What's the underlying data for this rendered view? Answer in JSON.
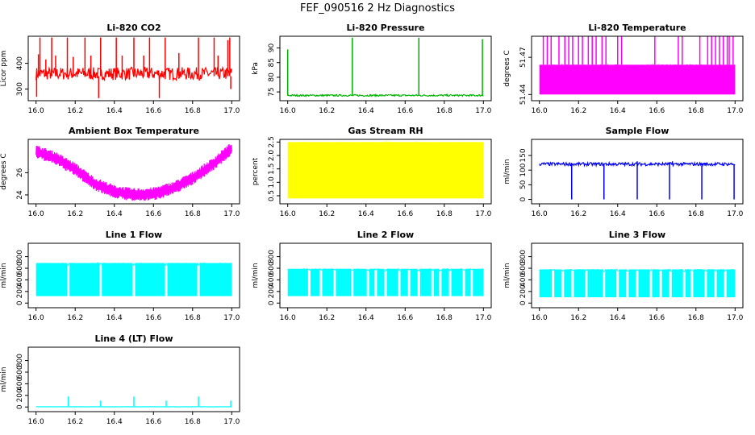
{
  "page_title": "FEF_090516  2 Hz Diagnostics",
  "chart_data": [
    {
      "id": "co2",
      "type": "line",
      "title": "Li-820 CO2",
      "ylabel": "Licor ppm",
      "color": "#ff0000",
      "xlim": [
        15.96,
        17.04
      ],
      "x_ticks": [
        "16.0",
        "16.2",
        "16.4",
        "16.6",
        "16.8",
        "17.0"
      ],
      "ylim": [
        255,
        505
      ],
      "y_ticks": [
        "300",
        "400"
      ],
      "series": [
        {
          "name": "CO2",
          "base": 350,
          "noise": [
            -15,
            35
          ],
          "spikes": [
            [
              16.003,
              270
            ],
            [
              16.012,
              435
            ],
            [
              16.02,
              500
            ],
            [
              16.05,
              415
            ],
            [
              16.08,
              500
            ],
            [
              16.1,
              430
            ],
            [
              16.16,
              500
            ],
            [
              16.19,
              425
            ],
            [
              16.25,
              500
            ],
            [
              16.28,
              430
            ],
            [
              16.32,
              265
            ],
            [
              16.33,
              500
            ],
            [
              16.41,
              500
            ],
            [
              16.44,
              430
            ],
            [
              16.5,
              500
            ],
            [
              16.55,
              430
            ],
            [
              16.58,
              500
            ],
            [
              16.63,
              265
            ],
            [
              16.66,
              500
            ],
            [
              16.73,
              440
            ],
            [
              16.83,
              500
            ],
            [
              16.91,
              500
            ],
            [
              16.93,
              430
            ],
            [
              16.98,
              490
            ],
            [
              16.99,
              500
            ],
            [
              16.995,
              300
            ]
          ]
        }
      ]
    },
    {
      "id": "pressure",
      "type": "line",
      "title": "Li-820 Pressure",
      "ylabel": "kPa",
      "color": "#00b000",
      "xlim": [
        15.96,
        17.04
      ],
      "x_ticks": [
        "16.0",
        "16.2",
        "16.4",
        "16.6",
        "16.8",
        "17.0"
      ],
      "ylim": [
        72,
        94
      ],
      "y_ticks": [
        "75",
        "80",
        "85",
        "90"
      ],
      "series": [
        {
          "name": "Pressure",
          "base": 73.8,
          "noise": [
            -0.3,
            0.3
          ],
          "spikes": [
            [
              16.0,
              89.5
            ],
            [
              16.33,
              93.5
            ],
            [
              16.67,
              93.5
            ],
            [
              16.995,
              93
            ]
          ]
        }
      ]
    },
    {
      "id": "temperature",
      "type": "line",
      "title": "Li-820 Temperature",
      "ylabel": "degrees C",
      "color": "#ff00ff",
      "xlim": [
        15.96,
        17.04
      ],
      "x_ticks": [
        "16.0",
        "16.2",
        "16.4",
        "16.6",
        "16.8",
        "17.0"
      ],
      "ylim": [
        51.435,
        51.487
      ],
      "y_ticks": [
        "51.44",
        "51.47"
      ],
      "series": [
        {
          "name": "Temperature",
          "band": [
            51.44,
            51.464
          ],
          "spikes": [
            [
              16.02,
              51.487
            ],
            [
              16.04,
              51.487
            ],
            [
              16.06,
              51.487
            ],
            [
              16.1,
              51.487
            ],
            [
              16.13,
              51.487
            ],
            [
              16.15,
              51.487
            ],
            [
              16.17,
              51.487
            ],
            [
              16.2,
              51.487
            ],
            [
              16.22,
              51.487
            ],
            [
              16.25,
              51.487
            ],
            [
              16.27,
              51.487
            ],
            [
              16.29,
              51.487
            ],
            [
              16.32,
              51.487
            ],
            [
              16.34,
              51.487
            ],
            [
              16.4,
              51.487
            ],
            [
              16.42,
              51.487
            ],
            [
              16.59,
              51.487
            ],
            [
              16.71,
              51.487
            ],
            [
              16.73,
              51.487
            ],
            [
              16.82,
              51.487
            ],
            [
              16.86,
              51.487
            ],
            [
              16.88,
              51.487
            ],
            [
              16.9,
              51.487
            ],
            [
              16.92,
              51.487
            ],
            [
              16.94,
              51.487
            ],
            [
              16.96,
              51.487
            ],
            [
              16.97,
              51.487
            ],
            [
              16.99,
              51.487
            ]
          ]
        }
      ]
    },
    {
      "id": "ambient",
      "type": "line",
      "title": "Ambient Box Temperature",
      "ylabel": "degrees C",
      "color": "#ff00ff",
      "xlim": [
        15.96,
        17.04
      ],
      "x_ticks": [
        "16.0",
        "16.2",
        "16.4",
        "16.6",
        "16.8",
        "17.0"
      ],
      "ylim": [
        23.2,
        29.0
      ],
      "y_ticks": [
        "24",
        "26"
      ],
      "series": [
        {
          "name": "Ambient",
          "curve": [
            [
              16.0,
              27.9
            ],
            [
              16.1,
              27.3
            ],
            [
              16.2,
              26.3
            ],
            [
              16.3,
              25.0
            ],
            [
              16.4,
              24.3
            ],
            [
              16.5,
              24.0
            ],
            [
              16.6,
              24.1
            ],
            [
              16.7,
              24.6
            ],
            [
              16.8,
              25.5
            ],
            [
              16.9,
              26.7
            ],
            [
              17.0,
              28.2
            ]
          ],
          "noise": [
            -0.6,
            0.6
          ]
        }
      ]
    },
    {
      "id": "rh",
      "type": "line",
      "title": "Gas Stream RH",
      "ylabel": "percent",
      "color": "#ffff00",
      "xlim": [
        15.96,
        17.04
      ],
      "x_ticks": [
        "16.0",
        "16.2",
        "16.4",
        "16.6",
        "16.8",
        "17.0"
      ],
      "ylim": [
        0.2,
        2.6
      ],
      "y_ticks": [
        "0.5",
        "1.0",
        "1.5",
        "2.0",
        "2.5"
      ],
      "series": [
        {
          "name": "RH",
          "band": [
            0.4,
            2.5
          ]
        }
      ]
    },
    {
      "id": "sample_flow",
      "type": "line",
      "title": "Sample Flow",
      "ylabel": "ml/min",
      "color": "#0000ff",
      "xlim": [
        15.96,
        17.04
      ],
      "x_ticks": [
        "16.0",
        "16.2",
        "16.4",
        "16.6",
        "16.8",
        "17.0"
      ],
      "ylim": [
        -15,
        205
      ],
      "y_ticks": [
        "0",
        "50",
        "100",
        "150"
      ],
      "series": [
        {
          "name": "Sample",
          "base": 120,
          "noise": [
            -5,
            6
          ],
          "spikes": [
            [
              16.165,
              0
            ],
            [
              16.33,
              0
            ],
            [
              16.5,
              0
            ],
            [
              16.665,
              0
            ],
            [
              16.83,
              0
            ],
            [
              16.995,
              0
            ],
            [
              16.5,
              130
            ],
            [
              16.68,
              130
            ]
          ]
        }
      ]
    },
    {
      "id": "line1",
      "type": "line",
      "title": "Line 1 Flow",
      "ylabel": "ml/min",
      "color": "#00ffff",
      "xlim": [
        15.96,
        17.04
      ],
      "x_ticks": [
        "16.0",
        "16.2",
        "16.4",
        "16.6",
        "16.8",
        "17.0"
      ],
      "ylim": [
        -80,
        1030
      ],
      "y_ticks": [
        "0",
        "200",
        "400",
        "600",
        "800"
      ],
      "series": [
        {
          "name": "Line 1",
          "band": [
            120,
            690
          ],
          "gaps": [
            16.165,
            16.33,
            16.5,
            16.665,
            16.83
          ]
        }
      ]
    },
    {
      "id": "line2",
      "type": "line",
      "title": "Line 2 Flow",
      "ylabel": "ml/min",
      "color": "#00ffff",
      "xlim": [
        15.96,
        17.04
      ],
      "x_ticks": [
        "16.0",
        "16.2",
        "16.4",
        "16.6",
        "16.8",
        "17.0"
      ],
      "ylim": [
        -80,
        1030
      ],
      "y_ticks": [
        "0",
        "200",
        "400",
        "600",
        "800"
      ],
      "series": [
        {
          "name": "Line 2",
          "band": [
            120,
            590
          ],
          "gaps": [
            16.11,
            16.17,
            16.24,
            16.33,
            16.41,
            16.45,
            16.5,
            16.57,
            16.62,
            16.67,
            16.74,
            16.78,
            16.83,
            16.9,
            16.94
          ]
        }
      ]
    },
    {
      "id": "line3",
      "type": "line",
      "title": "Line 3 Flow",
      "ylabel": "ml/min",
      "color": "#00ffff",
      "xlim": [
        15.96,
        17.04
      ],
      "x_ticks": [
        "16.0",
        "16.2",
        "16.4",
        "16.6",
        "16.8",
        "17.0"
      ],
      "ylim": [
        -80,
        1030
      ],
      "y_ticks": [
        "0",
        "200",
        "400",
        "600",
        "800"
      ],
      "series": [
        {
          "name": "Line 3",
          "band": [
            100,
            580
          ],
          "gaps": [
            16.07,
            16.12,
            16.17,
            16.24,
            16.33,
            16.4,
            16.45,
            16.5,
            16.57,
            16.62,
            16.67,
            16.74,
            16.78,
            16.85,
            16.9,
            16.95
          ]
        }
      ]
    },
    {
      "id": "line4",
      "type": "line",
      "title": "Line 4 (LT) Flow",
      "ylabel": "ml/min",
      "color": "#00ffff",
      "xlim": [
        15.96,
        17.04
      ],
      "x_ticks": [
        "16.0",
        "16.2",
        "16.4",
        "16.6",
        "16.8",
        "17.0"
      ],
      "ylim": [
        -80,
        1030
      ],
      "y_ticks": [
        "0",
        "200",
        "400",
        "600",
        "800"
      ],
      "series": [
        {
          "name": "Line 4",
          "base": 2,
          "noise": [
            0,
            4
          ],
          "spikes": [
            [
              16.165,
              180
            ],
            [
              16.33,
              110
            ],
            [
              16.5,
              180
            ],
            [
              16.665,
              110
            ],
            [
              16.83,
              180
            ],
            [
              16.995,
              110
            ]
          ]
        }
      ]
    }
  ]
}
